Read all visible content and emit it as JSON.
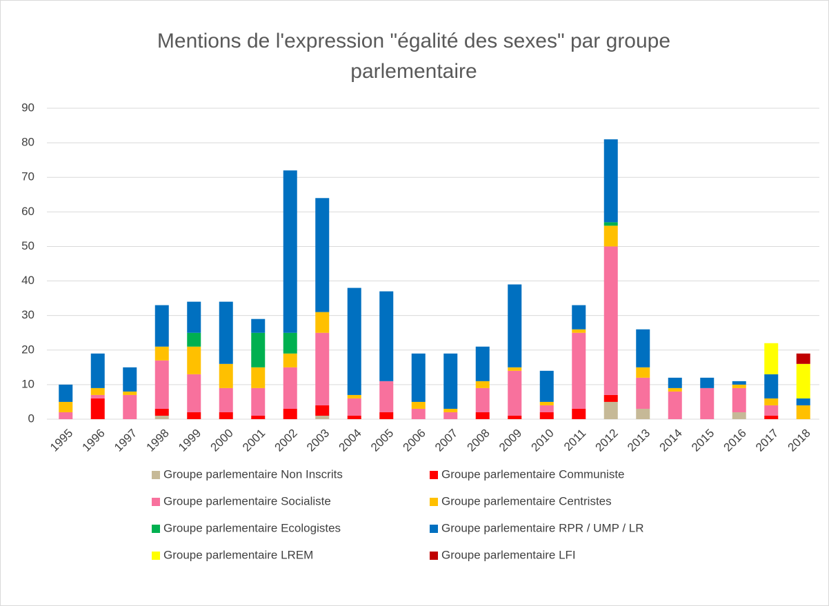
{
  "chart_data": {
    "type": "stacked_bar",
    "title": "Mentions de l'expression \"égalité des sexes\" par groupe parlementaire",
    "categories": [
      "1995",
      "1996",
      "1997",
      "1998",
      "1999",
      "2000",
      "2001",
      "2002",
      "2003",
      "2004",
      "2005",
      "2006",
      "2007",
      "2008",
      "2009",
      "2010",
      "2011",
      "2012",
      "2013",
      "2014",
      "2015",
      "2016",
      "2017",
      "2018"
    ],
    "series": [
      {
        "name": "Groupe parlementaire Non Inscrits",
        "color": "#c6b997",
        "values": [
          0,
          0,
          0,
          1,
          0,
          0,
          0,
          0,
          1,
          0,
          0,
          0,
          0,
          0,
          0,
          0,
          0,
          5,
          3,
          0,
          0,
          2,
          0,
          0
        ]
      },
      {
        "name": "Groupe parlementaire Communiste",
        "color": "#ff0000",
        "values": [
          0,
          6,
          0,
          2,
          2,
          2,
          1,
          3,
          3,
          1,
          2,
          0,
          0,
          2,
          1,
          2,
          3,
          2,
          0,
          0,
          0,
          0,
          1,
          0
        ]
      },
      {
        "name": "Groupe parlementaire Socialiste",
        "color": "#f8719d",
        "values": [
          2,
          1,
          7,
          14,
          11,
          7,
          8,
          12,
          21,
          5,
          9,
          3,
          2,
          7,
          13,
          2,
          22,
          43,
          9,
          8,
          9,
          7,
          3,
          0
        ]
      },
      {
        "name": "Groupe parlementaire Centristes",
        "color": "#ffc000",
        "values": [
          3,
          2,
          1,
          4,
          8,
          7,
          6,
          4,
          6,
          1,
          0,
          2,
          1,
          2,
          1,
          1,
          1,
          6,
          3,
          1,
          0,
          1,
          2,
          4
        ]
      },
      {
        "name": "Groupe parlementaire Ecologistes",
        "color": "#00b050",
        "values": [
          0,
          0,
          0,
          0,
          4,
          0,
          10,
          6,
          0,
          0,
          0,
          0,
          0,
          0,
          0,
          0,
          0,
          1,
          0,
          0,
          0,
          0,
          0,
          0
        ]
      },
      {
        "name": "Groupe parlementaire RPR / UMP / LR",
        "color": "#0070c0",
        "values": [
          5,
          10,
          7,
          12,
          9,
          18,
          4,
          47,
          33,
          31,
          26,
          14,
          16,
          10,
          24,
          9,
          7,
          24,
          11,
          3,
          3,
          1,
          7,
          2
        ]
      },
      {
        "name": "Groupe parlementaire LREM",
        "color": "#ffff00",
        "values": [
          0,
          0,
          0,
          0,
          0,
          0,
          0,
          0,
          0,
          0,
          0,
          0,
          0,
          0,
          0,
          0,
          0,
          0,
          0,
          0,
          0,
          0,
          9,
          10
        ]
      },
      {
        "name": "Groupe parlementaire LFI",
        "color": "#c00000",
        "values": [
          0,
          0,
          0,
          0,
          0,
          0,
          0,
          0,
          0,
          0,
          0,
          0,
          0,
          0,
          0,
          0,
          0,
          0,
          0,
          0,
          0,
          0,
          0,
          3
        ]
      }
    ],
    "ylim": [
      0,
      90
    ],
    "yticks": [
      0,
      10,
      20,
      30,
      40,
      50,
      60,
      70,
      80,
      90
    ],
    "grid": true,
    "legend": "bottom"
  }
}
